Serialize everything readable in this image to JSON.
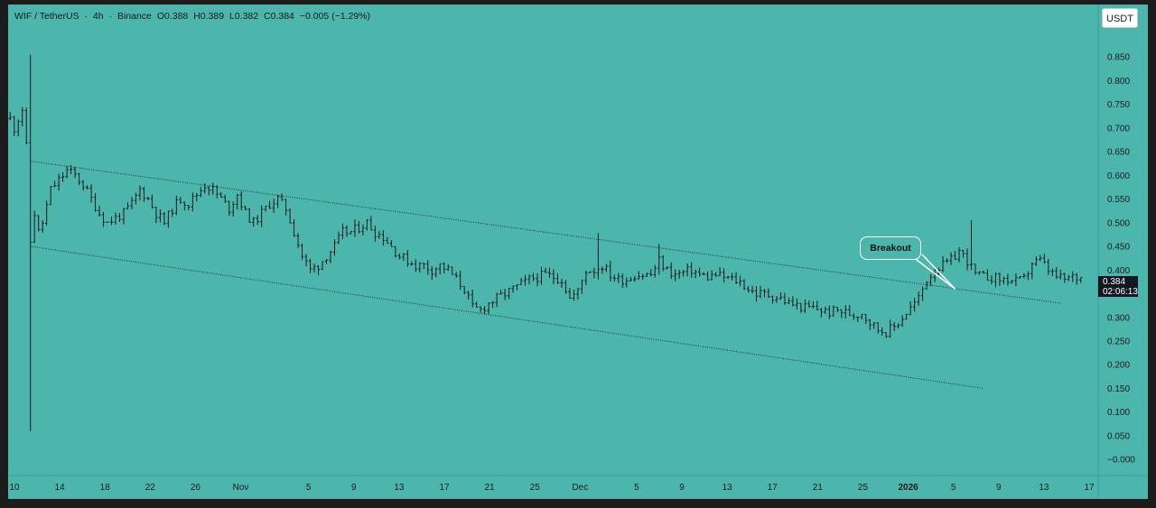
{
  "header": {
    "symbol": "WIF / TetherUS",
    "interval": "4h",
    "exchange": "Binance",
    "open": "O0.388",
    "high": "H0.389",
    "low": "L0.382",
    "close": "C0.384",
    "change": "−0.005 (−1.29%)"
  },
  "currency_button": "USDT",
  "last_price": {
    "value": "0.384",
    "countdown": "02:06:13"
  },
  "annotation": {
    "label": "Breakout"
  },
  "colors": {
    "background": "#4db6ac",
    "candles": "#1a1a1a",
    "channel_lines": "#263238",
    "price_tag": "#131722"
  },
  "chart_data": {
    "type": "candlestick",
    "title": "WIF / TetherUS · 4h · Binance",
    "xlabel": "",
    "ylabel": "",
    "ylim": [
      -0.015,
      0.9
    ],
    "grid": false,
    "y_ticks": [
      "−0.000",
      "0.050",
      "0.100",
      "0.150",
      "0.200",
      "0.250",
      "0.300",
      "0.350",
      "0.400",
      "0.450",
      "0.500",
      "0.550",
      "0.600",
      "0.650",
      "0.700",
      "0.750",
      "0.800",
      "0.850"
    ],
    "x_tick_labels": [
      "10",
      "14",
      "18",
      "22",
      "26",
      "Nov",
      "5",
      "9",
      "13",
      "17",
      "21",
      "25",
      "Dec",
      "5",
      "9",
      "13",
      "17",
      "21",
      "25",
      "2026",
      "5",
      "9",
      "13",
      "17"
    ],
    "x_bold_label": "2026",
    "close_path": [
      [
        0,
        0.72
      ],
      [
        1,
        0.7
      ],
      [
        2,
        0.72
      ],
      [
        3,
        0.74
      ],
      [
        4,
        0.66
      ],
      [
        5,
        0.46
      ],
      [
        6,
        0.52
      ],
      [
        7,
        0.48
      ],
      [
        8,
        0.5
      ],
      [
        10,
        0.57
      ],
      [
        12,
        0.59
      ],
      [
        14,
        0.61
      ],
      [
        16,
        0.6
      ],
      [
        18,
        0.58
      ],
      [
        20,
        0.55
      ],
      [
        22,
        0.52
      ],
      [
        24,
        0.5
      ],
      [
        26,
        0.51
      ],
      [
        28,
        0.52
      ],
      [
        30,
        0.54
      ],
      [
        32,
        0.57
      ],
      [
        34,
        0.55
      ],
      [
        36,
        0.52
      ],
      [
        38,
        0.5
      ],
      [
        40,
        0.53
      ],
      [
        42,
        0.55
      ],
      [
        44,
        0.54
      ],
      [
        46,
        0.56
      ],
      [
        48,
        0.58
      ],
      [
        50,
        0.57
      ],
      [
        52,
        0.55
      ],
      [
        54,
        0.53
      ],
      [
        56,
        0.56
      ],
      [
        58,
        0.52
      ],
      [
        60,
        0.5
      ],
      [
        62,
        0.52
      ],
      [
        64,
        0.54
      ],
      [
        66,
        0.55
      ],
      [
        68,
        0.53
      ],
      [
        70,
        0.48
      ],
      [
        72,
        0.43
      ],
      [
        74,
        0.4
      ],
      [
        76,
        0.41
      ],
      [
        78,
        0.43
      ],
      [
        80,
        0.45
      ],
      [
        82,
        0.48
      ],
      [
        84,
        0.48
      ],
      [
        86,
        0.49
      ],
      [
        88,
        0.5
      ],
      [
        90,
        0.48
      ],
      [
        92,
        0.47
      ],
      [
        94,
        0.45
      ],
      [
        96,
        0.43
      ],
      [
        98,
        0.42
      ],
      [
        100,
        0.41
      ],
      [
        102,
        0.41
      ],
      [
        104,
        0.4
      ],
      [
        106,
        0.41
      ],
      [
        108,
        0.4
      ],
      [
        110,
        0.38
      ],
      [
        112,
        0.36
      ],
      [
        114,
        0.32
      ],
      [
        116,
        0.315
      ],
      [
        118,
        0.33
      ],
      [
        120,
        0.34
      ],
      [
        122,
        0.35
      ],
      [
        124,
        0.36
      ],
      [
        126,
        0.37
      ],
      [
        128,
        0.38
      ],
      [
        130,
        0.385
      ],
      [
        132,
        0.39
      ],
      [
        134,
        0.385
      ],
      [
        136,
        0.38
      ],
      [
        138,
        0.34
      ],
      [
        140,
        0.355
      ],
      [
        142,
        0.4
      ],
      [
        144,
        0.4
      ],
      [
        146,
        0.41
      ],
      [
        148,
        0.39
      ],
      [
        150,
        0.38
      ],
      [
        152,
        0.38
      ],
      [
        154,
        0.39
      ],
      [
        156,
        0.39
      ],
      [
        158,
        0.39
      ],
      [
        160,
        0.42
      ],
      [
        162,
        0.4
      ],
      [
        164,
        0.39
      ],
      [
        166,
        0.395
      ],
      [
        168,
        0.4
      ],
      [
        170,
        0.39
      ],
      [
        172,
        0.385
      ],
      [
        174,
        0.39
      ],
      [
        176,
        0.385
      ],
      [
        178,
        0.38
      ],
      [
        180,
        0.375
      ],
      [
        182,
        0.36
      ],
      [
        184,
        0.35
      ],
      [
        186,
        0.35
      ],
      [
        188,
        0.345
      ],
      [
        190,
        0.34
      ],
      [
        192,
        0.33
      ],
      [
        194,
        0.325
      ],
      [
        196,
        0.32
      ],
      [
        198,
        0.32
      ],
      [
        200,
        0.315
      ],
      [
        202,
        0.31
      ],
      [
        204,
        0.315
      ],
      [
        206,
        0.31
      ],
      [
        208,
        0.305
      ],
      [
        210,
        0.31
      ],
      [
        212,
        0.29
      ],
      [
        214,
        0.275
      ],
      [
        216,
        0.27
      ],
      [
        218,
        0.28
      ],
      [
        220,
        0.3
      ],
      [
        222,
        0.32
      ],
      [
        224,
        0.34
      ],
      [
        226,
        0.38
      ],
      [
        228,
        0.4
      ],
      [
        230,
        0.41
      ],
      [
        232,
        0.42
      ],
      [
        234,
        0.44
      ],
      [
        236,
        0.42
      ],
      [
        238,
        0.39
      ],
      [
        240,
        0.385
      ],
      [
        242,
        0.385
      ],
      [
        244,
        0.38
      ],
      [
        246,
        0.38
      ],
      [
        248,
        0.375
      ],
      [
        250,
        0.38
      ],
      [
        252,
        0.415
      ],
      [
        254,
        0.42
      ],
      [
        256,
        0.4
      ],
      [
        258,
        0.385
      ],
      [
        260,
        0.38
      ],
      [
        262,
        0.385
      ],
      [
        264,
        0.384
      ]
    ],
    "spikes": [
      {
        "i": 5,
        "high": 0.855,
        "low": 0.06
      },
      {
        "i": 145,
        "high": 0.478,
        "low": 0.38
      },
      {
        "i": 160,
        "high": 0.455,
        "low": 0.39
      },
      {
        "i": 237,
        "high": 0.505,
        "low": 0.4
      }
    ],
    "channel": [
      {
        "name": "upper",
        "from": [
          5,
          0.63
        ],
        "to": [
          259,
          0.33
        ]
      },
      {
        "name": "lower",
        "from": [
          5,
          0.45
        ],
        "to": [
          240,
          0.15
        ]
      }
    ],
    "breakout_point": [
      233,
      0.36
    ],
    "last_price": 0.384,
    "x_tick_bars": [
      0,
      12,
      24,
      36,
      48,
      60,
      78,
      90,
      102,
      114,
      126,
      138,
      150,
      165,
      177,
      189,
      201,
      213,
      225,
      237,
      249,
      261,
      273,
      285
    ]
  }
}
